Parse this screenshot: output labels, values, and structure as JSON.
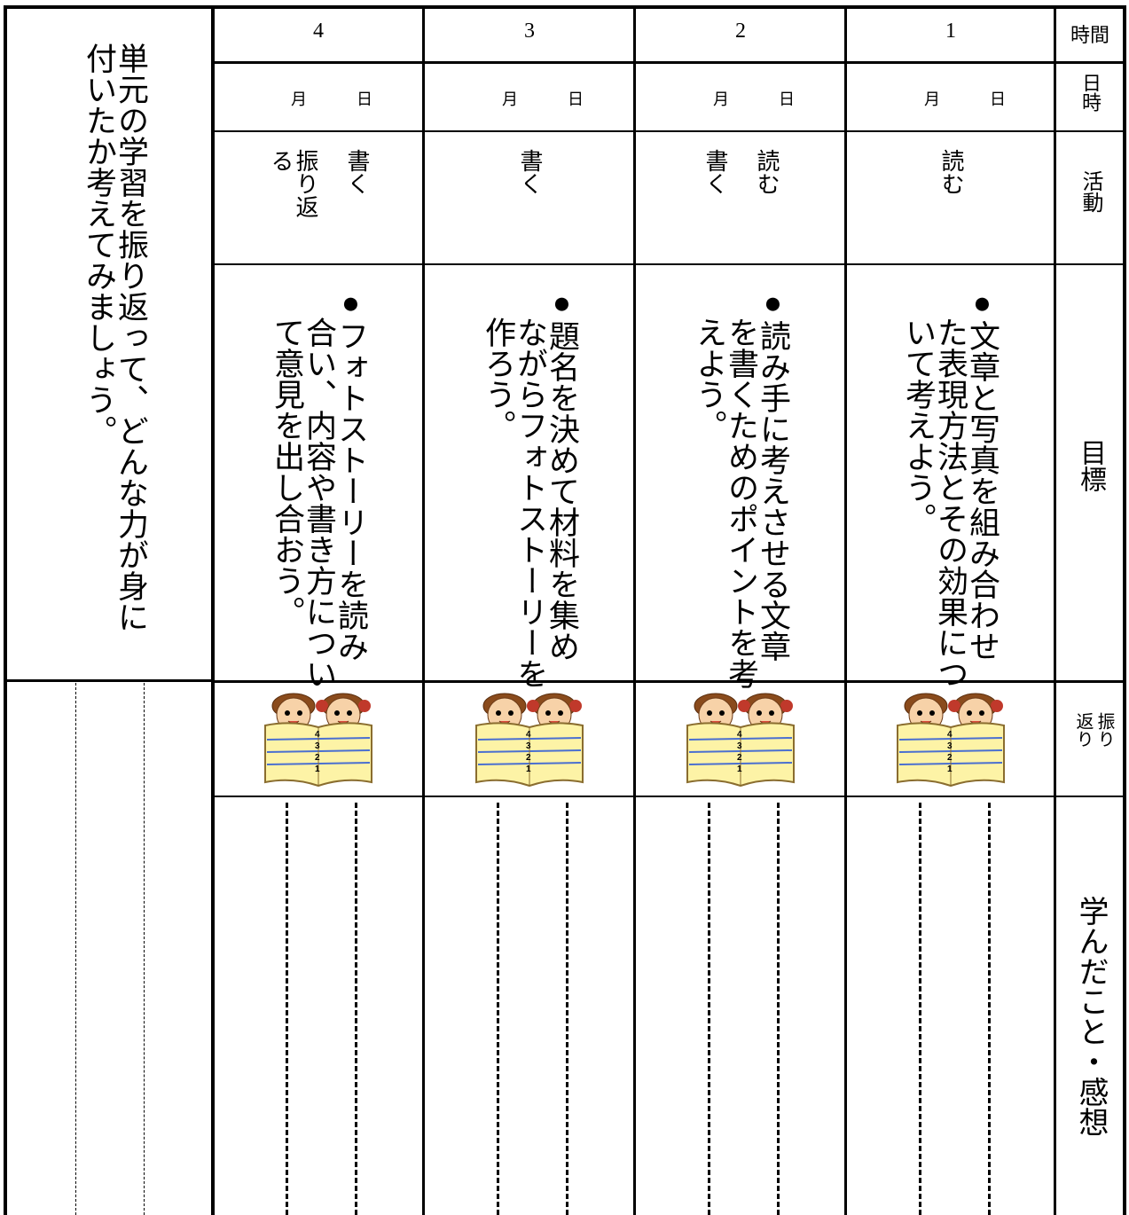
{
  "left_panel": {
    "prompt": "単元の学習を振り返って、どんな力が身に付いたか考えてみましょう。"
  },
  "row_headers": {
    "time": "時間",
    "datetime": "日時",
    "activity": "活動",
    "goal": "目標",
    "reflection": "振り返り",
    "learned": "学んだこと・感想"
  },
  "reflection_scale": [
    4,
    3,
    2,
    1
  ],
  "sessions": [
    {
      "number": 1,
      "month": "月",
      "day": "日",
      "activities": [
        "読む"
      ],
      "goal": "●文章と写真を組み合わせた表現方法とその効果について考えよう。"
    },
    {
      "number": 2,
      "month": "月",
      "day": "日",
      "activities": [
        "読む",
        "書く"
      ],
      "goal": "●読み手に考えさせる文章を書くためのポイントを考えよう。"
    },
    {
      "number": 3,
      "month": "月",
      "day": "日",
      "activities": [
        "書く"
      ],
      "goal": "●題名を決めて材料を集めながらフォトストーリーを作ろう。"
    },
    {
      "number": 4,
      "month": "月",
      "day": "日",
      "activities": [
        "書く",
        "振り返る"
      ],
      "goal": "●フォトストーリーを読み合い、内容や書き方について意見を出し合おう。"
    }
  ]
}
